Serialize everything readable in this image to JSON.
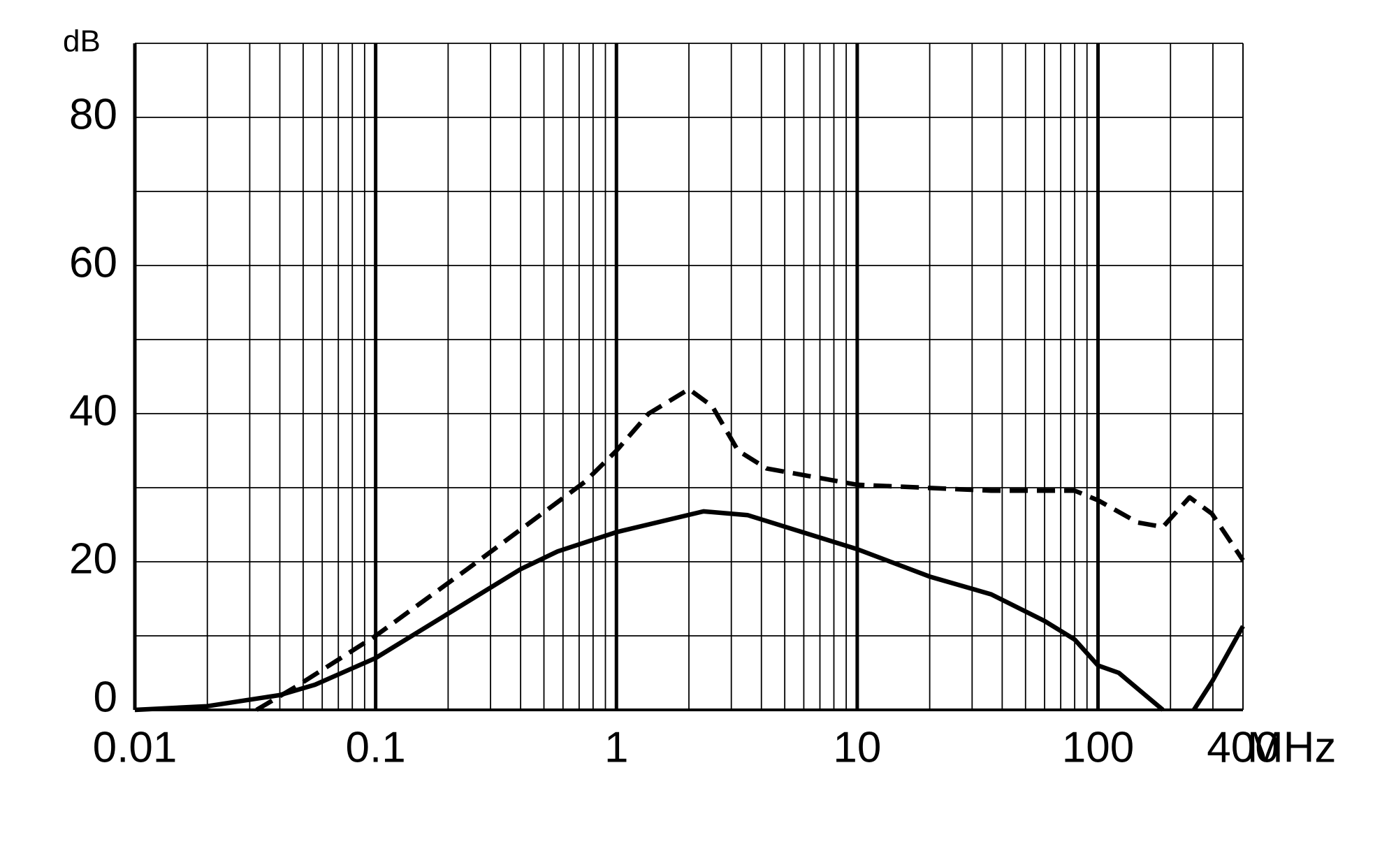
{
  "chart_data": {
    "type": "line",
    "y_label": "dB",
    "x_unit": "MHz",
    "xscale": "log",
    "log_minor_grid": true,
    "xlim": [
      0.01,
      400
    ],
    "xticks": [
      0.01,
      0.1,
      1,
      10,
      100,
      400
    ],
    "ylim": [
      0,
      90
    ],
    "yticks": [
      0,
      20,
      40,
      60,
      80
    ],
    "yminor": [
      10,
      30,
      50,
      70,
      90
    ],
    "grid": true,
    "series": [
      {
        "style": "solid",
        "color": "#000000",
        "x": [
          0.01,
          0.02,
          0.04,
          0.056,
          0.1,
          0.2,
          0.4,
          0.57,
          1,
          2.3,
          3.5,
          10,
          20,
          36,
          60,
          80,
          100,
          122,
          186,
          215,
          250,
          300,
          400
        ],
        "values": [
          0,
          0.5,
          2,
          3.4,
          7,
          13,
          19,
          21.4,
          24,
          26.8,
          26.3,
          21.7,
          18,
          15.6,
          12,
          9.5,
          6,
          5,
          0,
          null,
          0,
          4,
          11.3
        ]
      },
      {
        "style": "dashed",
        "color": "#000000",
        "x": [
          0.032,
          0.047,
          0.1,
          0.24,
          0.74,
          1,
          1.36,
          2,
          2.5,
          3.2,
          4.2,
          10,
          36,
          80,
          100,
          146,
          186,
          240,
          297,
          400
        ],
        "values": [
          0,
          3.2,
          10,
          19,
          30.8,
          35,
          40,
          43.3,
          41,
          35,
          32.6,
          30.4,
          29.6,
          29.6,
          28.3,
          25.3,
          24.7,
          28.7,
          26.5,
          20.2
        ]
      }
    ]
  }
}
